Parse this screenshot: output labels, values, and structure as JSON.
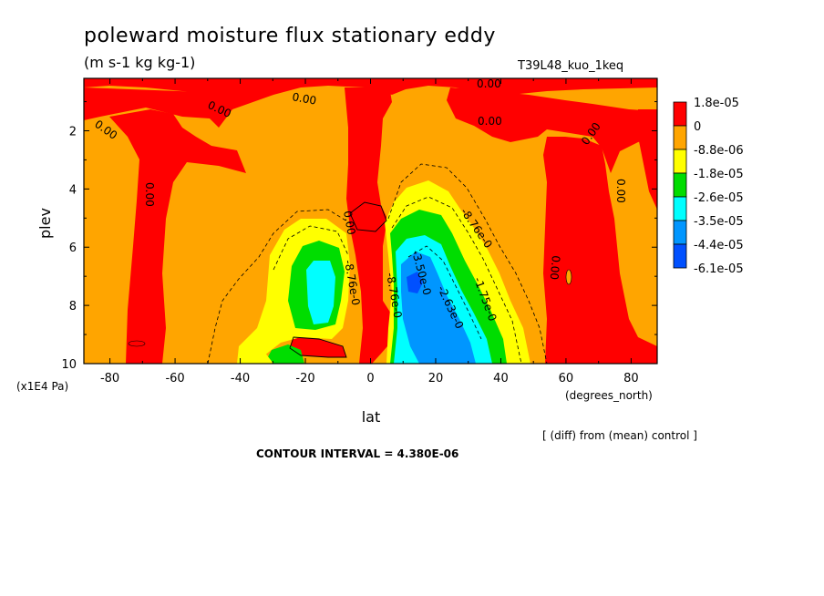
{
  "chart_data": {
    "type": "heatmap",
    "title": "poleward moisture flux stationary eddy",
    "units": "(m s-1 kg kg-1)",
    "run_label": "T39L48_kuo_1keq",
    "xlabel": "lat",
    "x_unit_label": "(degrees_north)",
    "ylabel": "plev",
    "y_unit_label": "(x1E4 Pa)",
    "xlim": [
      -88,
      88
    ],
    "ylim": [
      0.2,
      10
    ],
    "y_inverted": true,
    "x_ticks": [
      -80,
      -60,
      -40,
      -20,
      0,
      20,
      40,
      60,
      80
    ],
    "x_tick_labels": [
      "-80",
      "-60",
      "-40",
      "-20",
      "0",
      "20",
      "40",
      "60",
      "80"
    ],
    "y_ticks": [
      2,
      4,
      6,
      8,
      10
    ],
    "y_tick_labels": [
      "2",
      "4",
      "6",
      "8",
      "10"
    ],
    "colorbar": {
      "labels": [
        "1.8e-05",
        "0",
        "-8.8e-06",
        "-1.8e-05",
        "-2.6e-05",
        "-3.5e-05",
        "-4.4e-05",
        "-6.1e-05"
      ],
      "colors": [
        "#ff0000",
        "#ffa500",
        "#ffff00",
        "#00dd00",
        "#00ffff",
        "#0096ff",
        "#0050ff"
      ]
    },
    "contour_labels": [
      "0.00",
      "0.00",
      "0.00",
      "0.00",
      "0.00",
      "0.00",
      "0.00",
      "0.00",
      "0.00",
      "0.00",
      "-8.76e-0",
      "-1.75e-0",
      "-2.63e-0",
      "-3.50e-0",
      "-8.76e-0",
      "-8.76e-0"
    ],
    "contour_interval_text": "CONTOUR INTERVAL = 4.380E-06",
    "diff_note": "[ (diff) from (mean) control ]",
    "fields": {
      "background_range": "-8.8e-06 to 0",
      "positive_regions": "red near-zero/positive flux: upper levels, equatorial column, 60-80N column, SH storm track",
      "negative_minimum_lat": 15,
      "negative_minimum_plev": 7.2
    }
  }
}
